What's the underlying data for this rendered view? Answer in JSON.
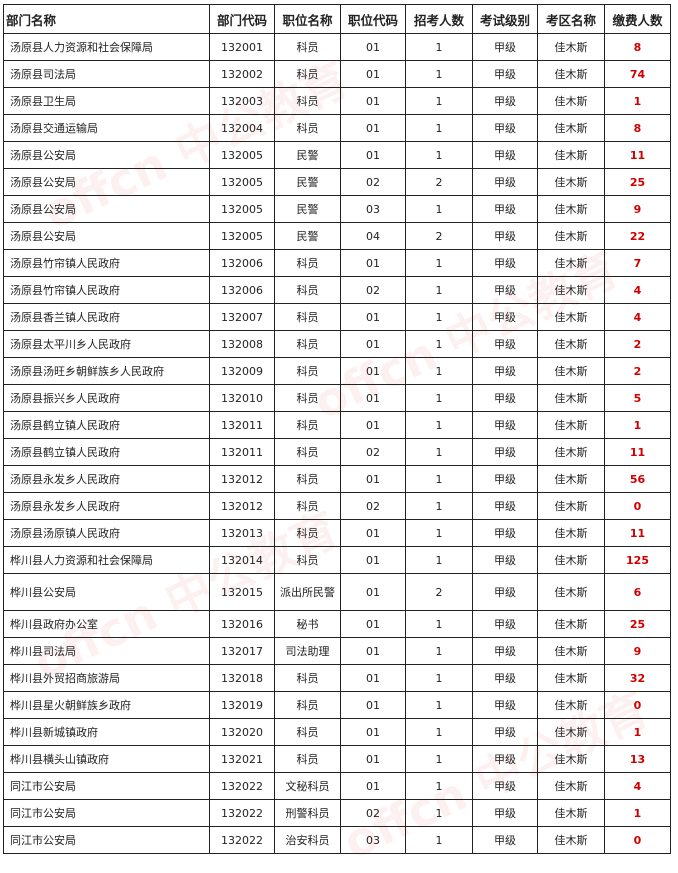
{
  "headers": [
    "部门名称",
    "部门代码",
    "职位名称",
    "职位代码",
    "招考人数",
    "考试级别",
    "考区名称",
    "缴费人数"
  ],
  "rows": [
    [
      "汤原县人力资源和社会保障局",
      "132001",
      "科员",
      "01",
      "1",
      "甲级",
      "佳木斯",
      "8"
    ],
    [
      "汤原县司法局",
      "132002",
      "科员",
      "01",
      "1",
      "甲级",
      "佳木斯",
      "74"
    ],
    [
      "汤原县卫生局",
      "132003",
      "科员",
      "01",
      "1",
      "甲级",
      "佳木斯",
      "1"
    ],
    [
      "汤原县交通运输局",
      "132004",
      "科员",
      "01",
      "1",
      "甲级",
      "佳木斯",
      "8"
    ],
    [
      "汤原县公安局",
      "132005",
      "民警",
      "01",
      "1",
      "甲级",
      "佳木斯",
      "11"
    ],
    [
      "汤原县公安局",
      "132005",
      "民警",
      "02",
      "2",
      "甲级",
      "佳木斯",
      "25"
    ],
    [
      "汤原县公安局",
      "132005",
      "民警",
      "03",
      "1",
      "甲级",
      "佳木斯",
      "9"
    ],
    [
      "汤原县公安局",
      "132005",
      "民警",
      "04",
      "2",
      "甲级",
      "佳木斯",
      "22"
    ],
    [
      "汤原县竹帘镇人民政府",
      "132006",
      "科员",
      "01",
      "1",
      "甲级",
      "佳木斯",
      "7"
    ],
    [
      "汤原县竹帘镇人民政府",
      "132006",
      "科员",
      "02",
      "1",
      "甲级",
      "佳木斯",
      "4"
    ],
    [
      "汤原县香兰镇人民政府",
      "132007",
      "科员",
      "01",
      "1",
      "甲级",
      "佳木斯",
      "4"
    ],
    [
      "汤原县太平川乡人民政府",
      "132008",
      "科员",
      "01",
      "1",
      "甲级",
      "佳木斯",
      "2"
    ],
    [
      "汤原县汤旺乡朝鲜族乡人民政府",
      "132009",
      "科员",
      "01",
      "1",
      "甲级",
      "佳木斯",
      "2"
    ],
    [
      "汤原县振兴乡人民政府",
      "132010",
      "科员",
      "01",
      "1",
      "甲级",
      "佳木斯",
      "5"
    ],
    [
      "汤原县鹤立镇人民政府",
      "132011",
      "科员",
      "01",
      "1",
      "甲级",
      "佳木斯",
      "1"
    ],
    [
      "汤原县鹤立镇人民政府",
      "132011",
      "科员",
      "02",
      "1",
      "甲级",
      "佳木斯",
      "11"
    ],
    [
      "汤原县永发乡人民政府",
      "132012",
      "科员",
      "01",
      "1",
      "甲级",
      "佳木斯",
      "56"
    ],
    [
      "汤原县永发乡人民政府",
      "132012",
      "科员",
      "02",
      "1",
      "甲级",
      "佳木斯",
      "0"
    ],
    [
      "汤原县汤原镇人民政府",
      "132013",
      "科员",
      "01",
      "1",
      "甲级",
      "佳木斯",
      "11"
    ],
    [
      "桦川县人力资源和社会保障局",
      "132014",
      "科员",
      "01",
      "1",
      "甲级",
      "佳木斯",
      "125"
    ],
    [
      "桦川县公安局",
      "132015",
      "派出所民警",
      "01",
      "2",
      "甲级",
      "佳木斯",
      "6"
    ],
    [
      "桦川县政府办公室",
      "132016",
      "秘书",
      "01",
      "1",
      "甲级",
      "佳木斯",
      "25"
    ],
    [
      "桦川县司法局",
      "132017",
      "司法助理",
      "01",
      "1",
      "甲级",
      "佳木斯",
      "9"
    ],
    [
      "桦川县外贸招商旅游局",
      "132018",
      "科员",
      "01",
      "1",
      "甲级",
      "佳木斯",
      "32"
    ],
    [
      "桦川县星火朝鲜族乡政府",
      "132019",
      "科员",
      "01",
      "1",
      "甲级",
      "佳木斯",
      "0"
    ],
    [
      "桦川县新城镇政府",
      "132020",
      "科员",
      "01",
      "1",
      "甲级",
      "佳木斯",
      "1"
    ],
    [
      "桦川县横头山镇政府",
      "132021",
      "科员",
      "01",
      "1",
      "甲级",
      "佳木斯",
      "13"
    ],
    [
      "同江市公安局",
      "132022",
      "文秘科员",
      "01",
      "1",
      "甲级",
      "佳木斯",
      "4"
    ],
    [
      "同江市公安局",
      "132022",
      "刑警科员",
      "02",
      "1",
      "甲级",
      "佳木斯",
      "1"
    ],
    [
      "同江市公安局",
      "132022",
      "治安科员",
      "03",
      "1",
      "甲级",
      "佳木斯",
      "0"
    ]
  ],
  "watermark": "offcn 中公教育",
  "colors": {
    "paid_count": "#d00000",
    "border": "#222222"
  }
}
